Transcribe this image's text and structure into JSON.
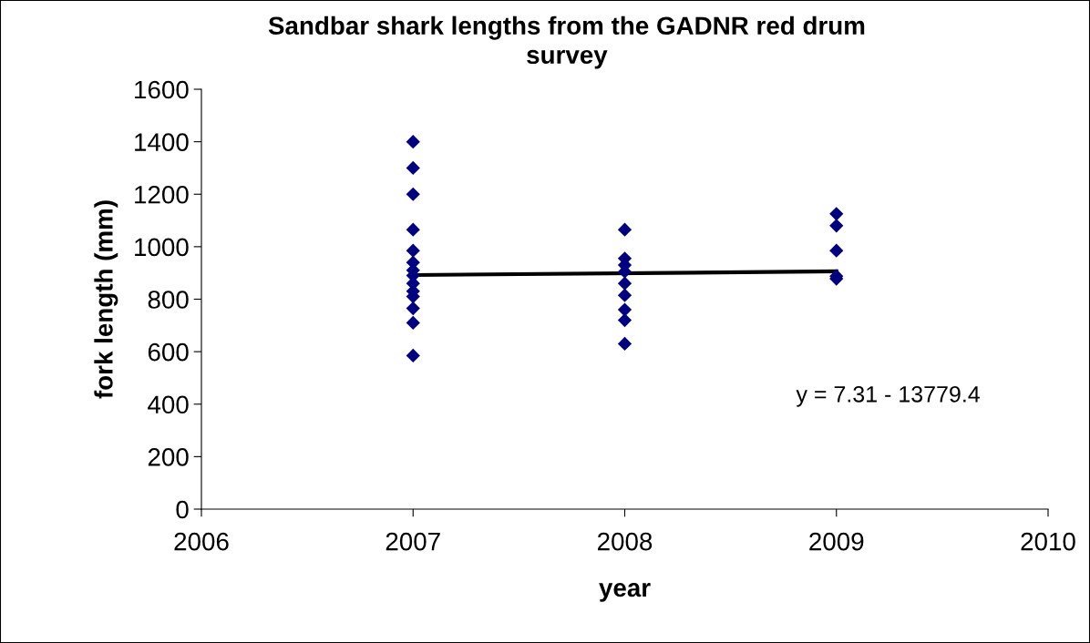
{
  "chart_data": {
    "type": "scatter",
    "title": "Sandbar shark lengths from the GADNR red drum survey",
    "xlabel": "year",
    "ylabel": "fork length (mm)",
    "grid": false,
    "legend": false,
    "xlim": [
      2006,
      2010
    ],
    "xticks": [
      2006,
      2007,
      2008,
      2009,
      2010
    ],
    "ylim": [
      0,
      1600
    ],
    "yticks": [
      0,
      200,
      400,
      600,
      800,
      1000,
      1200,
      1400,
      1600
    ],
    "series": [
      {
        "color": "#000080",
        "marker": "diamond",
        "x": [
          2007,
          2007,
          2007,
          2007,
          2007,
          2007,
          2007,
          2007,
          2007,
          2007,
          2007,
          2007,
          2007,
          2007,
          2008,
          2008,
          2008,
          2008,
          2008,
          2008,
          2008,
          2008,
          2008,
          2009,
          2009,
          2009,
          2009,
          2009
        ],
        "values": [
          1400,
          1300,
          1200,
          1065,
          985,
          940,
          910,
          890,
          860,
          830,
          810,
          765,
          710,
          585,
          1065,
          955,
          930,
          905,
          860,
          815,
          760,
          720,
          630,
          1125,
          1080,
          985,
          888,
          878
        ]
      },
      {
        "type": "line",
        "color": "#000000",
        "marker": "none",
        "x": [
          2007,
          2009
        ],
        "values": [
          892,
          906
        ]
      }
    ],
    "annotations": [
      "y = 7.31 - 13779.4"
    ]
  }
}
